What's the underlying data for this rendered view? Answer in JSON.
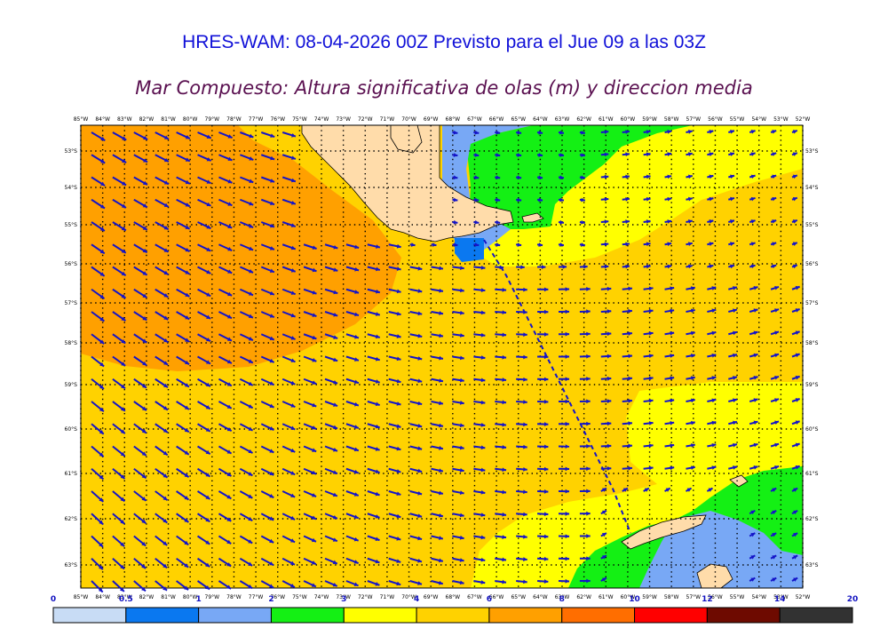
{
  "title": "HRES-WAM: 08-04-2026 00Z Previsto para el Jue 09 a las 03Z",
  "subtitle": "Mar Compuesto: Altura significativa de olas (m) y direccion media",
  "lon_labels": [
    "85°W",
    "84°W",
    "83°W",
    "82°W",
    "81°W",
    "80°W",
    "79°W",
    "78°W",
    "77°W",
    "76°W",
    "75°W",
    "74°W",
    "73°W",
    "72°W",
    "71°W",
    "70°W",
    "69°W",
    "68°W",
    "67°W",
    "66°W",
    "65°W",
    "64°W",
    "63°W",
    "62°W",
    "61°W",
    "60°W",
    "59°W",
    "58°W",
    "57°W",
    "56°W",
    "55°W",
    "54°W",
    "53°W",
    "52°W"
  ],
  "lat_labels": [
    "53°S",
    "54°S",
    "55°S",
    "56°S",
    "57°S",
    "58°S",
    "59°S",
    "60°S",
    "61°S",
    "62°S",
    "63°S"
  ],
  "colorbar": {
    "labels": [
      "0",
      "0.5",
      "1",
      "2",
      "3",
      "4",
      "6",
      "8",
      "10",
      "12",
      "14",
      "20"
    ],
    "colors": [
      "#c8dcf5",
      "#0a78f0",
      "#78a8f5",
      "#14f014",
      "#ffff00",
      "#ffd200",
      "#ffa000",
      "#ff6e00",
      "#ff0000",
      "#6e0a00",
      "#323232"
    ]
  },
  "colors": {
    "land": "#ffdcaa",
    "arrows": "#1414c8",
    "track": "#1414c8"
  }
}
